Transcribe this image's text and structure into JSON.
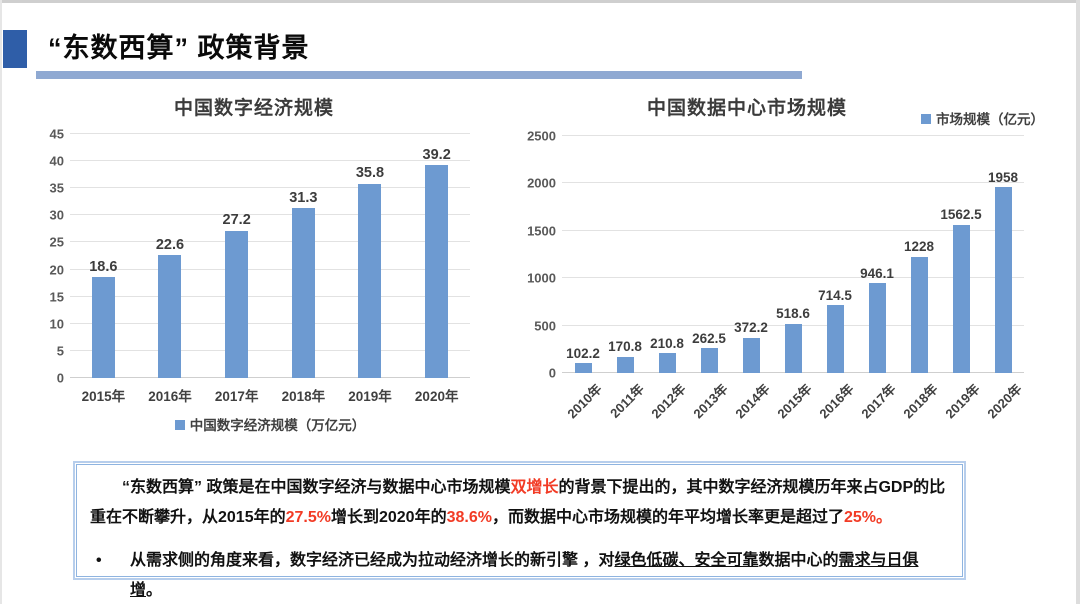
{
  "slide": {
    "title": "“东数西算” 政策背景"
  },
  "chart_data": [
    {
      "type": "bar",
      "title": "中国数字经济规模",
      "legend": "中国数字经济规模（万亿元）",
      "legend_position": "bottom",
      "categories": [
        "2015年",
        "2016年",
        "2017年",
        "2018年",
        "2019年",
        "2020年"
      ],
      "values": [
        18.6,
        22.6,
        27.2,
        31.3,
        35.8,
        39.2
      ],
      "xlabel": "",
      "ylabel": "",
      "ylim": [
        0,
        45
      ],
      "ytick_step": 5,
      "grid": true,
      "xlabel_rotation": 0
    },
    {
      "type": "bar",
      "title": "中国数据中心市场规模",
      "legend": "市场规模（亿元）",
      "legend_position": "top-right",
      "categories": [
        "2010年",
        "2011年",
        "2012年",
        "2013年",
        "2014年",
        "2015年",
        "2016年",
        "2017年",
        "2018年",
        "2019年",
        "2020年"
      ],
      "values": [
        102.2,
        170.8,
        210.8,
        262.5,
        372.2,
        518.6,
        714.5,
        946.1,
        1228,
        1562.5,
        1958
      ],
      "xlabel": "",
      "ylabel": "",
      "ylim": [
        0,
        2500
      ],
      "ytick_step": 500,
      "grid": true,
      "xlabel_rotation": -45
    }
  ],
  "note_box": {
    "bullet_marker": "•",
    "paragraph1": [
      {
        "t": "“东数西算” 政策是在中国数字经济与数据中心市场规模"
      },
      {
        "t": "双增长",
        "red": true
      },
      {
        "t": "的背景下提出的，其中数字经济规模历年来占GDP的比重在不断攀升，从2015年的"
      },
      {
        "t": "27.5%",
        "red": true
      },
      {
        "t": "增长到2020年的"
      },
      {
        "t": "38.6%",
        "red": true
      },
      {
        "t": "，而数据中心市场规模的年平均增长率更是超过了"
      },
      {
        "t": "25%。",
        "red": true
      }
    ],
    "bullet": [
      {
        "t": "从需求侧的角度来看，数字经济已经成为拉动经济增长的新引擎 ，对"
      },
      {
        "t": "绿色低碳、安全可靠",
        "u": true
      },
      {
        "t": "数据中心的"
      },
      {
        "t": "需求与日俱增",
        "u": true
      },
      {
        "t": "。"
      }
    ]
  },
  "colors": {
    "bar_blue": "#6D9AD1",
    "header_square_blue": "#2F5EA8",
    "header_bar_blue": "#8FA9D2",
    "note_border_blue": "#B7CEEC",
    "highlight_red": "#F23B25"
  }
}
